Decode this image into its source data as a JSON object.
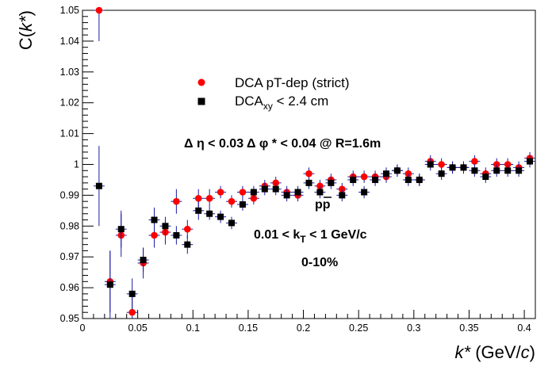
{
  "chart_data": {
    "type": "scatter",
    "title": "",
    "xlabel": "k* (GeV/c)",
    "ylabel": "C(k*)",
    "xlim": [
      0,
      0.41
    ],
    "ylim": [
      0.95,
      1.05
    ],
    "xticks": [
      "0",
      "0.05",
      "0.1",
      "0.15",
      "0.2",
      "0.25",
      "0.3",
      "0.35",
      "0.4"
    ],
    "yticks": [
      "0.95",
      "0.96",
      "0.97",
      "0.98",
      "0.99",
      "1",
      "1.01",
      "1.02",
      "1.03",
      "1.04",
      "1.05"
    ],
    "legend_position": "top-center",
    "series": [
      {
        "name": "DCA pT-dep (strict)",
        "marker": "circle",
        "color": "#ff0000",
        "points": [
          {
            "x": 0.015,
            "y": 1.05,
            "err": 0.01
          },
          {
            "x": 0.025,
            "y": 0.962,
            "err": 0.01
          },
          {
            "x": 0.035,
            "y": 0.977,
            "err": 0.007
          },
          {
            "x": 0.045,
            "y": 0.952,
            "err": 0.006
          },
          {
            "x": 0.055,
            "y": 0.968,
            "err": 0.005
          },
          {
            "x": 0.065,
            "y": 0.977,
            "err": 0.004
          },
          {
            "x": 0.075,
            "y": 0.978,
            "err": 0.004
          },
          {
            "x": 0.085,
            "y": 0.988,
            "err": 0.004
          },
          {
            "x": 0.095,
            "y": 0.979,
            "err": 0.003
          },
          {
            "x": 0.105,
            "y": 0.989,
            "err": 0.003
          },
          {
            "x": 0.115,
            "y": 0.989,
            "err": 0.003
          },
          {
            "x": 0.125,
            "y": 0.991,
            "err": 0.002
          },
          {
            "x": 0.135,
            "y": 0.988,
            "err": 0.002
          },
          {
            "x": 0.145,
            "y": 0.991,
            "err": 0.002
          },
          {
            "x": 0.155,
            "y": 0.989,
            "err": 0.002
          },
          {
            "x": 0.165,
            "y": 0.993,
            "err": 0.002
          },
          {
            "x": 0.175,
            "y": 0.994,
            "err": 0.002
          },
          {
            "x": 0.185,
            "y": 0.991,
            "err": 0.002
          },
          {
            "x": 0.195,
            "y": 0.99,
            "err": 0.002
          },
          {
            "x": 0.205,
            "y": 0.997,
            "err": 0.002
          },
          {
            "x": 0.215,
            "y": 0.993,
            "err": 0.002
          },
          {
            "x": 0.225,
            "y": 0.995,
            "err": 0.002
          },
          {
            "x": 0.235,
            "y": 0.992,
            "err": 0.002
          },
          {
            "x": 0.245,
            "y": 0.996,
            "err": 0.002
          },
          {
            "x": 0.255,
            "y": 0.996,
            "err": 0.002
          },
          {
            "x": 0.265,
            "y": 0.996,
            "err": 0.002
          },
          {
            "x": 0.275,
            "y": 0.996,
            "err": 0.002
          },
          {
            "x": 0.285,
            "y": 0.998,
            "err": 0.002
          },
          {
            "x": 0.295,
            "y": 0.997,
            "err": 0.002
          },
          {
            "x": 0.305,
            "y": 0.995,
            "err": 0.002
          },
          {
            "x": 0.315,
            "y": 1.001,
            "err": 0.002
          },
          {
            "x": 0.325,
            "y": 1.0,
            "err": 0.002
          },
          {
            "x": 0.335,
            "y": 0.999,
            "err": 0.002
          },
          {
            "x": 0.345,
            "y": 0.999,
            "err": 0.002
          },
          {
            "x": 0.355,
            "y": 1.001,
            "err": 0.002
          },
          {
            "x": 0.365,
            "y": 0.997,
            "err": 0.002
          },
          {
            "x": 0.375,
            "y": 1.0,
            "err": 0.002
          },
          {
            "x": 0.385,
            "y": 1.0,
            "err": 0.002
          },
          {
            "x": 0.395,
            "y": 0.999,
            "err": 0.002
          },
          {
            "x": 0.405,
            "y": 1.002,
            "err": 0.002
          }
        ]
      },
      {
        "name": "DCAxy < 2.4 cm",
        "marker": "square",
        "color": "#000000",
        "points": [
          {
            "x": 0.015,
            "y": 0.993,
            "err": 0.013
          },
          {
            "x": 0.025,
            "y": 0.961,
            "err": 0.011
          },
          {
            "x": 0.035,
            "y": 0.979,
            "err": 0.006
          },
          {
            "x": 0.045,
            "y": 0.958,
            "err": 0.005
          },
          {
            "x": 0.055,
            "y": 0.969,
            "err": 0.004
          },
          {
            "x": 0.065,
            "y": 0.982,
            "err": 0.004
          },
          {
            "x": 0.075,
            "y": 0.98,
            "err": 0.003
          },
          {
            "x": 0.085,
            "y": 0.977,
            "err": 0.003
          },
          {
            "x": 0.095,
            "y": 0.974,
            "err": 0.003
          },
          {
            "x": 0.105,
            "y": 0.985,
            "err": 0.003
          },
          {
            "x": 0.115,
            "y": 0.984,
            "err": 0.002
          },
          {
            "x": 0.125,
            "y": 0.983,
            "err": 0.002
          },
          {
            "x": 0.135,
            "y": 0.981,
            "err": 0.002
          },
          {
            "x": 0.145,
            "y": 0.987,
            "err": 0.002
          },
          {
            "x": 0.155,
            "y": 0.991,
            "err": 0.002
          },
          {
            "x": 0.165,
            "y": 0.992,
            "err": 0.002
          },
          {
            "x": 0.175,
            "y": 0.992,
            "err": 0.002
          },
          {
            "x": 0.185,
            "y": 0.99,
            "err": 0.002
          },
          {
            "x": 0.195,
            "y": 0.991,
            "err": 0.002
          },
          {
            "x": 0.205,
            "y": 0.994,
            "err": 0.002
          },
          {
            "x": 0.215,
            "y": 0.991,
            "err": 0.002
          },
          {
            "x": 0.225,
            "y": 0.994,
            "err": 0.002
          },
          {
            "x": 0.235,
            "y": 0.99,
            "err": 0.002
          },
          {
            "x": 0.245,
            "y": 0.995,
            "err": 0.002
          },
          {
            "x": 0.255,
            "y": 0.991,
            "err": 0.002
          },
          {
            "x": 0.265,
            "y": 0.995,
            "err": 0.002
          },
          {
            "x": 0.275,
            "y": 0.997,
            "err": 0.002
          },
          {
            "x": 0.285,
            "y": 0.998,
            "err": 0.002
          },
          {
            "x": 0.295,
            "y": 0.995,
            "err": 0.002
          },
          {
            "x": 0.305,
            "y": 0.995,
            "err": 0.002
          },
          {
            "x": 0.315,
            "y": 1.0,
            "err": 0.002
          },
          {
            "x": 0.325,
            "y": 0.997,
            "err": 0.002
          },
          {
            "x": 0.335,
            "y": 0.999,
            "err": 0.002
          },
          {
            "x": 0.345,
            "y": 0.999,
            "err": 0.002
          },
          {
            "x": 0.355,
            "y": 0.998,
            "err": 0.002
          },
          {
            "x": 0.365,
            "y": 0.996,
            "err": 0.002
          },
          {
            "x": 0.375,
            "y": 0.998,
            "err": 0.002
          },
          {
            "x": 0.385,
            "y": 0.998,
            "err": 0.002
          },
          {
            "x": 0.395,
            "y": 0.998,
            "err": 0.002
          },
          {
            "x": 0.405,
            "y": 1.001,
            "err": 0.002
          }
        ]
      }
    ],
    "legend": {
      "entry1": "DCA pT-dep (strict)",
      "entry2_main": "DCA",
      "entry2_sub": "xy",
      "entry2_rest": " < 2.4 cm"
    },
    "annotations": {
      "cuts": "Δ η < 0.03 Δ φ * < 0.04 @ R=1.6m",
      "pair": "pp",
      "kt_main": "0.01 < k",
      "kt_sub": "T",
      "kt_rest": " < 1 GeV/c",
      "centrality": "0-10%"
    },
    "axis_titles": {
      "x_k": "k*",
      "x_units_open": " (GeV/",
      "x_units_c": "c",
      "x_units_close": ")",
      "y_c": "C(",
      "y_k": "k*",
      "y_close": ")"
    }
  }
}
